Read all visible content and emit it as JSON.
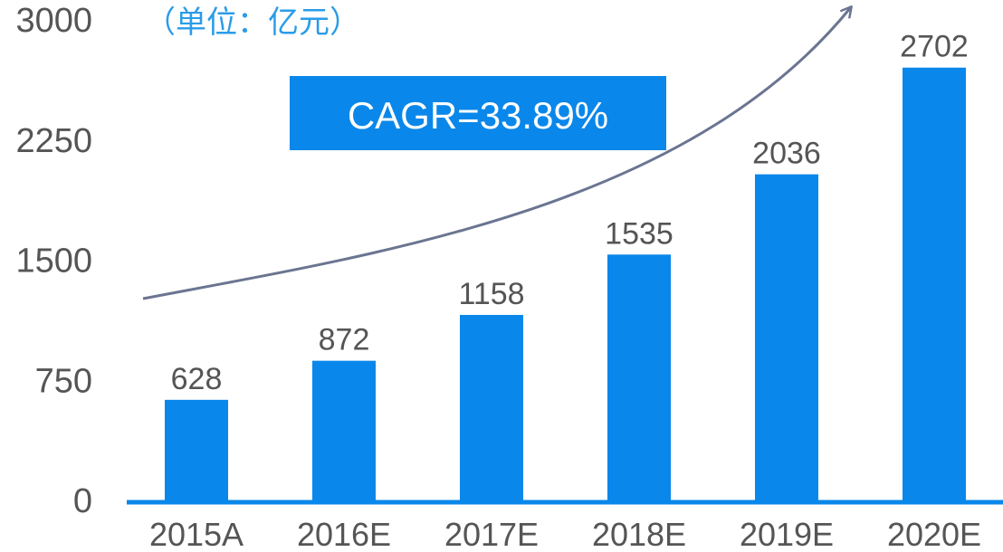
{
  "chart_data": {
    "type": "bar",
    "unit_label": "（单位：亿元）",
    "categories": [
      "2015A",
      "2016E",
      "2017E",
      "2018E",
      "2019E",
      "2020E"
    ],
    "values": [
      628,
      872,
      1158,
      1535,
      2036,
      2702
    ],
    "data_labels": [
      "628",
      "872",
      "1158",
      "1535",
      "2036",
      "2702"
    ],
    "y_ticks": [
      "0",
      "750",
      "1500",
      "2250",
      "3000"
    ],
    "y_tick_values": [
      0,
      750,
      1500,
      2250,
      3000
    ],
    "ylim": [
      0,
      3000
    ],
    "grid": false,
    "annotation": "CAGR=33.89%",
    "colors": {
      "bar": "#0a87ea",
      "axis": "#0a87ea",
      "annotation_bg": "#0a87ea",
      "annotation_text": "#ffffff",
      "unit_label": "#2a9ce8",
      "trend_arrow": "#6a7591",
      "tick_text": "#555555"
    }
  }
}
